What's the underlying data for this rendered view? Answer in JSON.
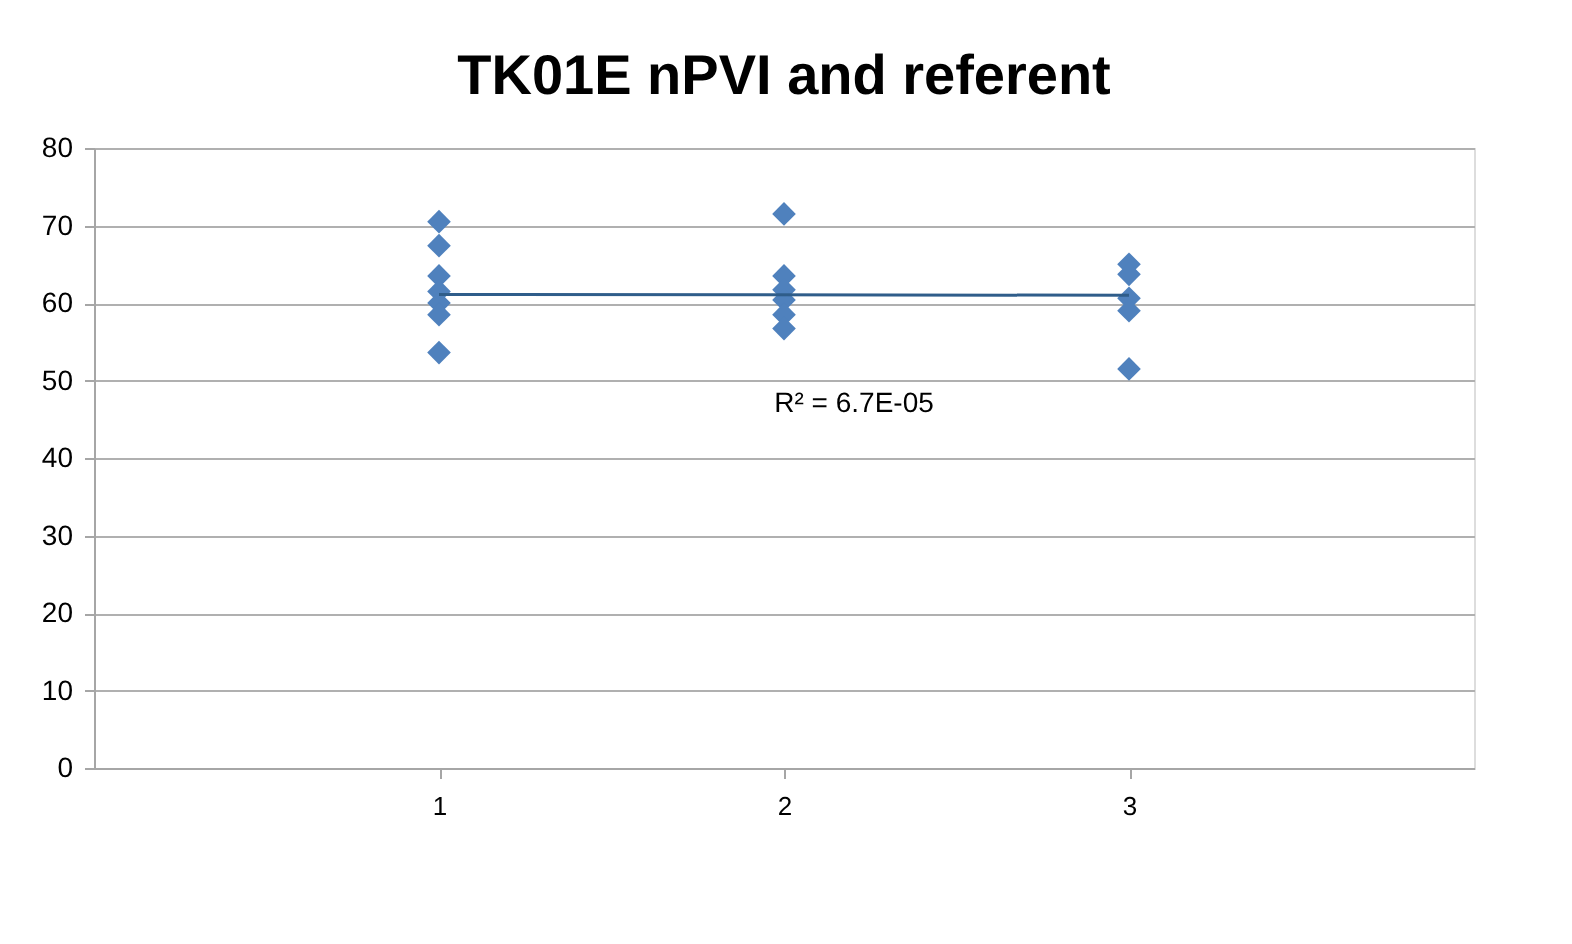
{
  "chart_data": {
    "type": "scatter",
    "title": "TK01E nPVI and referent",
    "xlim": [
      0,
      4
    ],
    "xticks": [
      1,
      2,
      3
    ],
    "ylim": [
      0,
      80
    ],
    "yticks": [
      0,
      10,
      20,
      30,
      40,
      50,
      60,
      70,
      80
    ],
    "grid": "y",
    "series": [
      {
        "color": "#4f81bd",
        "marker": "diamond",
        "x": [
          1,
          1,
          1,
          1,
          1,
          1,
          1,
          2,
          2,
          2,
          2,
          2,
          2,
          3,
          3,
          3,
          3,
          3
        ],
        "values": [
          70.5,
          67.4,
          63.5,
          61.5,
          60,
          58.5,
          53.6,
          71.5,
          63.5,
          61.7,
          60.4,
          58.5,
          56.7,
          65,
          63.7,
          60.6,
          59,
          51.5
        ]
      },
      {
        "type": "line",
        "color": "#2f5d8a",
        "x": [
          1,
          3
        ],
        "values": [
          61.1,
          61.0
        ]
      }
    ],
    "annotations": [
      "R² = 6.7E-05"
    ]
  }
}
